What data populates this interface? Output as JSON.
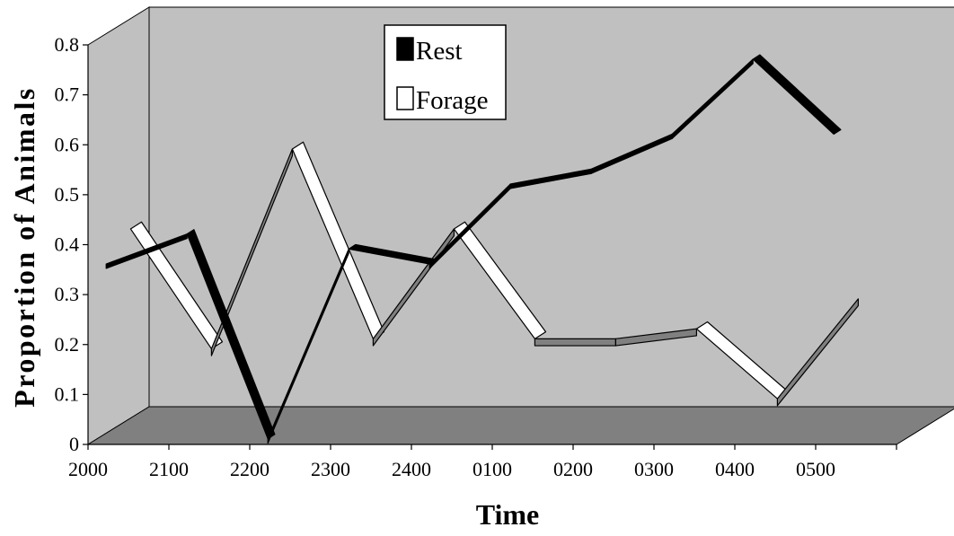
{
  "chart_data": {
    "type": "line",
    "title": "",
    "xlabel": "Time",
    "ylabel": "Proportion of Animals",
    "categories": [
      "2000",
      "2100",
      "2200",
      "2300",
      "2400",
      "0100",
      "0200",
      "0300",
      "0400",
      "0500"
    ],
    "y_ticks": [
      "0",
      "0.1",
      "0.2",
      "0.3",
      "0.4",
      "0.5",
      "0.6",
      "0.7",
      "0.8"
    ],
    "ylim": [
      0,
      0.8
    ],
    "grid": false,
    "style": "3d",
    "legend_position": "top-center",
    "series": [
      {
        "name": "Rest",
        "color": "#000000",
        "x": [
          2000,
          2100,
          2200,
          2300,
          2400,
          100,
          200,
          300,
          400,
          500
        ],
        "values": [
          0.35,
          0.41,
          0.0,
          0.38,
          0.35,
          0.51,
          0.54,
          0.61,
          0.76,
          0.61
        ]
      },
      {
        "name": "Forage",
        "color": "#ffffff",
        "x": [
          2000,
          2100,
          2200,
          2300,
          2400,
          100,
          200,
          300,
          400,
          500
        ],
        "values": [
          0.39,
          0.15,
          0.55,
          0.17,
          0.39,
          0.17,
          0.17,
          0.19,
          0.05,
          0.25
        ]
      }
    ],
    "colors": {
      "back_wall": "#c0c0c0",
      "left_wall": "#c0c0c0",
      "floor": "#808080",
      "forage_side": "#808080"
    }
  }
}
